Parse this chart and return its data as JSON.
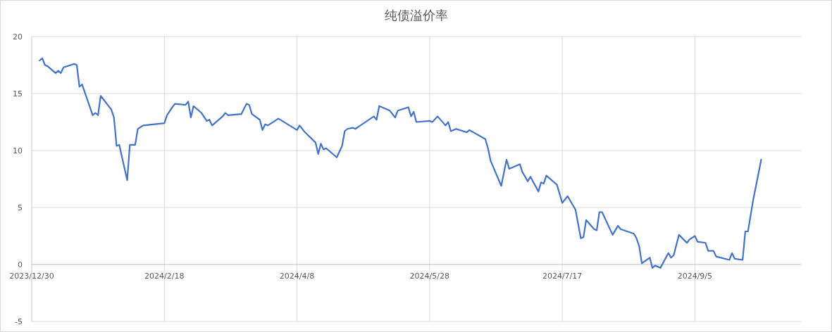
{
  "chart_data": {
    "type": "line",
    "title": "纯债溢价率",
    "xlim": [
      "2023-12-30",
      "2024-10-15"
    ],
    "xticks": [
      {
        "value": "2023-12-30",
        "label": "2023/12/30"
      },
      {
        "value": "2024-02-18",
        "label": "2024/2/18"
      },
      {
        "value": "2024-04-08",
        "label": "2024/4/8"
      },
      {
        "value": "2024-05-28",
        "label": "2024/5/28"
      },
      {
        "value": "2024-07-17",
        "label": "2024/7/17"
      },
      {
        "value": "2024-09-05",
        "label": "2024/9/5"
      }
    ],
    "ylim": [
      -5,
      20
    ],
    "yticks": [
      -5,
      0,
      5,
      10,
      15,
      20
    ],
    "grid": true,
    "marker": "none",
    "line_style": "solid",
    "x": [
      "2024-01-02",
      "2024-01-03",
      "2024-01-04",
      "2024-01-05",
      "2024-01-08",
      "2024-01-09",
      "2024-01-10",
      "2024-01-11",
      "2024-01-15",
      "2024-01-16",
      "2024-01-17",
      "2024-01-18",
      "2024-01-22",
      "2024-01-23",
      "2024-01-24",
      "2024-01-25",
      "2024-01-29",
      "2024-01-30",
      "2024-01-31",
      "2024-02-01",
      "2024-02-04",
      "2024-02-05",
      "2024-02-07",
      "2024-02-08",
      "2024-02-10",
      "2024-02-18",
      "2024-02-19",
      "2024-02-21",
      "2024-02-22",
      "2024-02-26",
      "2024-02-27",
      "2024-02-28",
      "2024-02-29",
      "2024-03-03",
      "2024-03-05",
      "2024-03-06",
      "2024-03-07",
      "2024-03-11",
      "2024-03-12",
      "2024-03-13",
      "2024-03-18",
      "2024-03-20",
      "2024-03-21",
      "2024-03-22",
      "2024-03-25",
      "2024-03-26",
      "2024-03-27",
      "2024-03-28",
      "2024-04-01",
      "2024-04-08",
      "2024-04-09",
      "2024-04-11",
      "2024-04-15",
      "2024-04-16",
      "2024-04-17",
      "2024-04-18",
      "2024-04-19",
      "2024-04-23",
      "2024-04-25",
      "2024-04-26",
      "2024-04-27",
      "2024-04-29",
      "2024-04-30",
      "2024-05-07",
      "2024-05-08",
      "2024-05-09",
      "2024-05-13",
      "2024-05-15",
      "2024-05-16",
      "2024-05-20",
      "2024-05-21",
      "2024-05-22",
      "2024-05-23",
      "2024-05-28",
      "2024-05-29",
      "2024-05-31",
      "2024-06-03",
      "2024-06-04",
      "2024-06-05",
      "2024-06-07",
      "2024-06-11",
      "2024-06-12",
      "2024-06-18",
      "2024-06-19",
      "2024-06-20",
      "2024-06-24",
      "2024-06-26",
      "2024-06-27",
      "2024-07-01",
      "2024-07-02",
      "2024-07-04",
      "2024-07-05",
      "2024-07-08",
      "2024-07-09",
      "2024-07-10",
      "2024-07-11",
      "2024-07-15",
      "2024-07-17",
      "2024-07-19",
      "2024-07-22",
      "2024-07-24",
      "2024-07-25",
      "2024-07-26",
      "2024-07-29",
      "2024-07-30",
      "2024-07-31",
      "2024-08-01",
      "2024-08-05",
      "2024-08-07",
      "2024-08-08",
      "2024-08-13",
      "2024-08-14",
      "2024-08-15",
      "2024-08-16",
      "2024-08-19",
      "2024-08-20",
      "2024-08-21",
      "2024-08-23",
      "2024-08-26",
      "2024-08-27",
      "2024-08-28",
      "2024-08-30",
      "2024-09-02",
      "2024-09-03",
      "2024-09-05",
      "2024-09-06",
      "2024-09-09",
      "2024-09-10",
      "2024-09-12",
      "2024-09-13",
      "2024-09-18",
      "2024-09-19",
      "2024-09-20",
      "2024-09-23",
      "2024-09-24",
      "2024-09-25",
      "2024-09-27",
      "2024-09-30"
    ],
    "series": [
      {
        "color": "#4472c4",
        "values": [
          17.9,
          18.1,
          17.5,
          17.4,
          16.8,
          17.0,
          16.8,
          17.3,
          17.6,
          17.5,
          15.6,
          15.8,
          13.1,
          13.3,
          13.1,
          14.8,
          13.6,
          12.9,
          10.4,
          10.5,
          7.4,
          10.5,
          10.5,
          11.9,
          12.2,
          12.4,
          13.1,
          13.8,
          14.1,
          14.0,
          14.3,
          12.9,
          13.9,
          13.3,
          12.6,
          12.7,
          12.2,
          13.0,
          13.3,
          13.1,
          13.2,
          14.1,
          14.0,
          13.2,
          12.7,
          11.8,
          12.3,
          12.2,
          12.8,
          11.8,
          12.2,
          11.6,
          10.7,
          9.7,
          10.6,
          10.1,
          10.2,
          9.4,
          10.4,
          11.7,
          11.9,
          12.0,
          11.9,
          13.0,
          12.7,
          13.9,
          13.5,
          12.9,
          13.5,
          13.8,
          13.0,
          13.4,
          12.5,
          12.6,
          12.5,
          13.0,
          12.2,
          12.5,
          11.7,
          11.9,
          11.6,
          11.8,
          11.0,
          10.2,
          9.1,
          6.9,
          9.2,
          8.4,
          8.8,
          8.1,
          7.3,
          7.7,
          6.4,
          7.2,
          7.1,
          7.8,
          7.0,
          5.4,
          6.0,
          4.8,
          2.3,
          2.4,
          3.9,
          3.1,
          3.0,
          4.6,
          4.6,
          2.6,
          3.4,
          3.1,
          2.7,
          2.3,
          1.6,
          0.1,
          0.6,
          -0.3,
          -0.1,
          -0.3,
          1.0,
          0.6,
          0.8,
          2.6,
          1.9,
          2.2,
          2.5,
          2.0,
          1.9,
          1.2,
          1.2,
          0.7,
          0.4,
          1.0,
          0.5,
          0.4,
          2.9,
          2.9,
          5.7,
          9.2
        ]
      }
    ]
  }
}
